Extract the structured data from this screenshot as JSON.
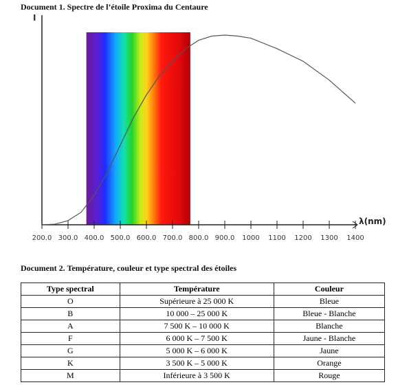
{
  "document1": {
    "title": "Document 1. Spectre de l’étoile Proxima du Centaure"
  },
  "chart_data": {
    "type": "line",
    "y_label": "I",
    "x_label": "λ(nm)",
    "x": [
      200,
      250,
      300,
      350,
      400,
      450,
      500,
      550,
      600,
      650,
      700,
      750,
      800,
      850,
      900,
      950,
      1000,
      1100,
      1200,
      1300,
      1400
    ],
    "series": [
      {
        "color": "#555555",
        "values": [
          0,
          0.003,
          0.02,
          0.06,
          0.14,
          0.25,
          0.38,
          0.51,
          0.62,
          0.71,
          0.78,
          0.84,
          0.88,
          0.9,
          0.905,
          0.9,
          0.89,
          0.84,
          0.78,
          0.69,
          0.58
        ]
      }
    ],
    "visible_band": [
      370,
      768
    ],
    "xlim": [
      200,
      1400
    ],
    "ylim": [
      0,
      1
    ],
    "xticks": [
      {
        "value": 200,
        "label": "200.0"
      },
      {
        "value": 300,
        "label": "300.0"
      },
      {
        "value": 400,
        "label": "400.0"
      },
      {
        "value": 500,
        "label": "500.0"
      },
      {
        "value": 600,
        "label": "600.0"
      },
      {
        "value": 700,
        "label": "700.0"
      },
      {
        "value": 800,
        "label": "800.0"
      },
      {
        "value": 900,
        "label": "900.0"
      },
      1000,
      1100,
      1200,
      1300,
      1400
    ]
  },
  "document2": {
    "title": "Document 2. Température, couleur et type spectral des étoiles",
    "table": {
      "header": [
        "Type spectral",
        "Température",
        "Couleur"
      ],
      "rows": [
        [
          "O",
          "Supérieure à 25 000 K",
          "Bleue"
        ],
        [
          "B",
          "10 000 – 25 000 K",
          "Bleue - Blanche"
        ],
        [
          "A",
          "7 500 K – 10 000 K",
          "Blanche"
        ],
        [
          "F",
          "6 000 K – 7 500 K",
          "Jaune - Blanche"
        ],
        [
          "G",
          "5 000 K – 6 000 K",
          "Jaune"
        ],
        [
          "K",
          "3 500 K – 5 000 K",
          "Orange"
        ],
        [
          "M",
          "Inférieure à 3 500 K",
          "Rouge"
        ]
      ]
    }
  }
}
